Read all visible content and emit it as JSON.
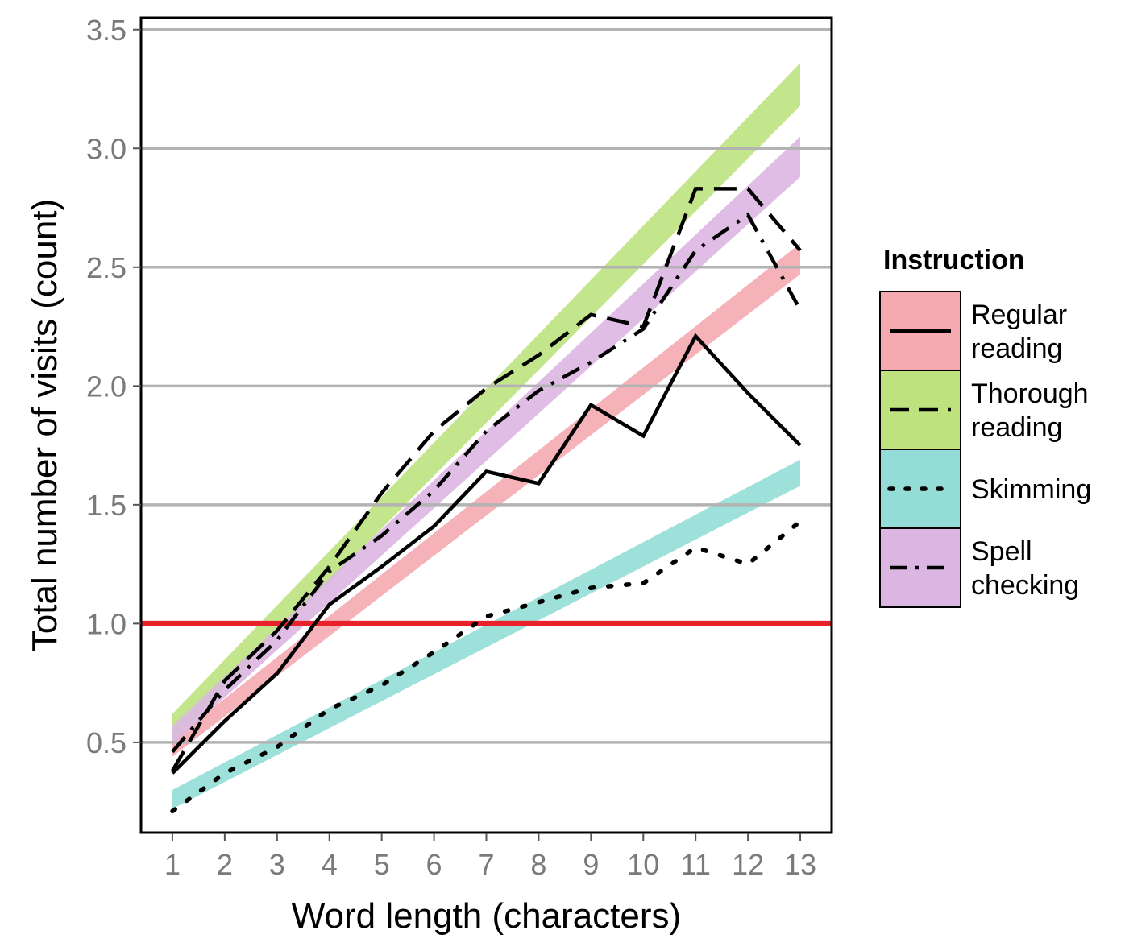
{
  "chart_data": {
    "type": "line",
    "title": "",
    "xlabel": "Word length (characters)",
    "ylabel": "Total number of visits (count)",
    "x": [
      1,
      2,
      3,
      4,
      5,
      6,
      7,
      8,
      9,
      10,
      11,
      12,
      13
    ],
    "xlim": [
      0.4,
      13.6
    ],
    "ylim": [
      0.12,
      3.55
    ],
    "yticks": [
      "0.5",
      "1.0",
      "1.5",
      "2.0",
      "2.5",
      "3.0",
      "3.5"
    ],
    "xticks": [
      "1",
      "2",
      "3",
      "4",
      "5",
      "6",
      "7",
      "8",
      "9",
      "10",
      "11",
      "12",
      "13"
    ],
    "grid": "horizontal",
    "reference_line": {
      "y": 1.0,
      "color": "#e8212a"
    },
    "legend": {
      "title": "Instruction",
      "position": "right"
    },
    "series": [
      {
        "name": "Regular\nreading",
        "line_style": "solid",
        "band_color": "#f4aab0",
        "values": [
          0.37,
          0.59,
          0.79,
          1.08,
          1.24,
          1.41,
          1.64,
          1.59,
          1.92,
          1.79,
          2.21,
          1.97,
          1.75
        ],
        "band": [
          [
            0.44,
            0.51
          ],
          [
            2.47,
            2.6
          ]
        ]
      },
      {
        "name": "Thorough\nreading",
        "line_style": "dashed",
        "band_color": "#bde27e",
        "values": [
          0.38,
          0.76,
          0.97,
          1.24,
          1.55,
          1.81,
          1.99,
          2.13,
          2.3,
          2.25,
          2.83,
          2.83,
          2.57
        ],
        "band": [
          [
            0.51,
            0.62
          ],
          [
            3.18,
            3.36
          ]
        ]
      },
      {
        "name": "Skimming",
        "line_style": "dotted",
        "band_color": "#93ddd6",
        "values": [
          0.21,
          0.37,
          0.48,
          0.64,
          0.74,
          0.88,
          1.03,
          1.09,
          1.15,
          1.17,
          1.32,
          1.25,
          1.43
        ],
        "band": [
          [
            0.22,
            0.3
          ],
          [
            1.58,
            1.69
          ]
        ]
      },
      {
        "name": "Spell\nchecking",
        "line_style": "dashdot",
        "band_color": "#dbb6e2",
        "values": [
          0.46,
          0.72,
          0.93,
          1.22,
          1.37,
          1.56,
          1.81,
          1.98,
          2.1,
          2.24,
          2.57,
          2.72,
          2.32
        ],
        "band": [
          [
            0.49,
            0.57
          ],
          [
            2.88,
            3.05
          ]
        ]
      }
    ]
  }
}
